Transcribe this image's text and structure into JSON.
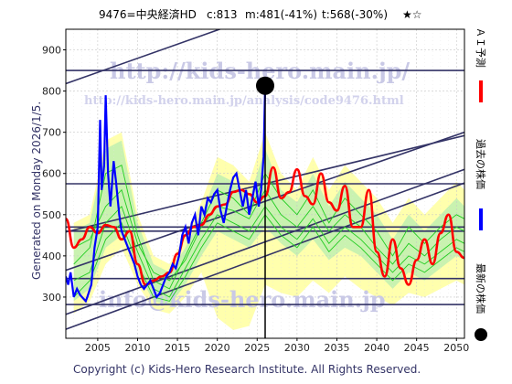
{
  "header": {
    "ticker": "9476=中央経済HD",
    "current": "c:813",
    "mid": "m:481(-41%)",
    "target": "t:568(-30%)",
    "stars": "★☆"
  },
  "side_label": "Generated on Monday 2026/1/5.",
  "footer": "Copyright (c) Kids-Hero Research Institute. All Rights Reserved.",
  "watermarks": {
    "top": "http://kids-hero.main.jp/",
    "mid": "http://kids-hero.main.jp/analysis/code9476.html",
    "bottom": "info@kids-hero.main.jp"
  },
  "legend": [
    {
      "label": "ＡＩ予測",
      "color": "#ff0000"
    },
    {
      "label": "過去の株価",
      "color": "#0000ff"
    },
    {
      "label": "最新の株価",
      "color": "#000000"
    }
  ],
  "colors": {
    "ai_forecast": "#ff0000",
    "past_price": "#0000ff",
    "latest_price": "#000000",
    "green_band": "#22cc22",
    "yellow_band": "#ffff99",
    "channel": "#333366"
  },
  "chart_data": {
    "type": "line",
    "xlim": [
      2001,
      2051
    ],
    "ylim": [
      200,
      950
    ],
    "x_ticks": [
      2005,
      2010,
      2015,
      2020,
      2025,
      2030,
      2035,
      2040,
      2045,
      2050
    ],
    "y_ticks": [
      300,
      400,
      500,
      600,
      700,
      800,
      900
    ],
    "grid": true,
    "latest": {
      "x": 2026.0,
      "y": 813
    },
    "horizontal_levels": [
      282,
      345,
      460,
      470,
      575,
      850
    ],
    "trend_channels": [
      {
        "x": [
          2001,
          2051
        ],
        "y": [
          222,
          577
        ]
      },
      {
        "x": [
          2001,
          2051
        ],
        "y": [
          258,
          610
        ]
      },
      {
        "x": [
          2001,
          2051
        ],
        "y": [
          365,
          700
        ]
      },
      {
        "x": [
          2001,
          2051
        ],
        "y": [
          458,
          692
        ]
      },
      {
        "x": [
          2001,
          2051
        ],
        "y": [
          818,
          1160
        ]
      }
    ],
    "past_price": {
      "x": [
        2001.0,
        2001.3,
        2001.6,
        2002.0,
        2002.4,
        2002.8,
        2003.5,
        2003.7,
        2004.2,
        2004.6,
        2005.0,
        2005.3,
        2005.5,
        2005.8,
        2006.0,
        2006.3,
        2006.6,
        2007.0,
        2007.3,
        2007.7,
        2008.0,
        2008.4,
        2008.8,
        2009.2,
        2009.6,
        2010.0,
        2010.4,
        2010.8,
        2011.2,
        2011.6,
        2012.0,
        2012.4,
        2012.8,
        2013.2,
        2013.6,
        2014.0,
        2014.4,
        2014.8,
        2015.2,
        2015.6,
        2016.0,
        2016.4,
        2016.8,
        2017.2,
        2017.6,
        2018.0,
        2018.4,
        2018.8,
        2019.2,
        2019.6,
        2020.0,
        2020.4,
        2020.8,
        2021.2,
        2021.6,
        2022.0,
        2022.4,
        2022.8,
        2023.2,
        2023.6,
        2024.0,
        2024.4,
        2024.8,
        2025.2,
        2025.5,
        2025.8,
        2026.0
      ],
      "y": [
        350,
        330,
        360,
        300,
        320,
        305,
        290,
        300,
        330,
        420,
        470,
        730,
        560,
        620,
        790,
        600,
        520,
        630,
        580,
        500,
        460,
        440,
        420,
        400,
        380,
        350,
        330,
        320,
        330,
        340,
        320,
        300,
        310,
        330,
        350,
        360,
        380,
        370,
        400,
        450,
        470,
        430,
        480,
        500,
        450,
        520,
        500,
        540,
        530,
        550,
        560,
        510,
        480,
        520,
        560,
        590,
        600,
        560,
        520,
        560,
        500,
        540,
        580,
        520,
        560,
        640,
        813
      ]
    },
    "ai_forecast": {
      "x": [
        2001.0,
        2002.0,
        2003.0,
        2004.0,
        2005.0,
        2006.0,
        2007.0,
        2008.0,
        2009.0,
        2010.0,
        2011.0,
        2012.0,
        2013.0,
        2014.0,
        2015.0,
        2016.0,
        2017.0,
        2018.0,
        2019.0,
        2020.0,
        2021.0,
        2022.0,
        2023.0,
        2024.0,
        2025.0,
        2026.0,
        2027.0,
        2028.0,
        2029.0,
        2030.0,
        2031.0,
        2032.0,
        2033.0,
        2034.0,
        2035.0,
        2036.0,
        2037.0,
        2038.0,
        2039.0,
        2040.0,
        2041.0,
        2042.0,
        2043.0,
        2044.0,
        2045.0,
        2046.0,
        2047.0,
        2048.0,
        2049.0,
        2050.0,
        2051.0
      ],
      "y": [
        490,
        420,
        440,
        470,
        455,
        475,
        470,
        440,
        460,
        380,
        330,
        340,
        350,
        360,
        405,
        450,
        470,
        475,
        500,
        520,
        525,
        555,
        560,
        550,
        530,
        545,
        615,
        540,
        555,
        610,
        545,
        525,
        600,
        530,
        510,
        570,
        470,
        470,
        560,
        410,
        350,
        440,
        370,
        330,
        390,
        440,
        380,
        455,
        500,
        410,
        395
      ]
    },
    "green_lines": [
      {
        "x": [
          2002,
          2004,
          2006,
          2008,
          2010,
          2012,
          2014,
          2016,
          2018,
          2020,
          2022,
          2024,
          2026,
          2028,
          2030,
          2032,
          2034,
          2036,
          2038,
          2040,
          2042,
          2044,
          2046,
          2048,
          2050,
          2051
        ],
        "y": [
          420,
          440,
          520,
          560,
          430,
          360,
          340,
          390,
          470,
          520,
          510,
          490,
          560,
          500,
          470,
          520,
          460,
          500,
          470,
          420,
          380,
          430,
          400,
          440,
          470,
          460
        ]
      },
      {
        "x": [
          2002,
          2004,
          2006,
          2008,
          2010,
          2012,
          2014,
          2016,
          2018,
          2020,
          2022,
          2024,
          2026,
          2028,
          2030,
          2032,
          2034,
          2036,
          2038,
          2040,
          2042,
          2044,
          2046,
          2048,
          2050,
          2051
        ],
        "y": [
          380,
          420,
          600,
          620,
          450,
          340,
          320,
          400,
          480,
          560,
          540,
          500,
          600,
          540,
          500,
          560,
          480,
          540,
          500,
          460,
          400,
          470,
          430,
          470,
          500,
          490
        ]
      },
      {
        "x": [
          2002,
          2004,
          2006,
          2008,
          2010,
          2012,
          2014,
          2016,
          2018,
          2020,
          2022,
          2024,
          2026,
          2028,
          2030,
          2032,
          2034,
          2036,
          2038,
          2040,
          2042,
          2044,
          2046,
          2048,
          2050,
          2051
        ],
        "y": [
          340,
          360,
          480,
          520,
          410,
          320,
          300,
          370,
          440,
          500,
          480,
          460,
          520,
          470,
          440,
          490,
          430,
          470,
          440,
          400,
          360,
          400,
          380,
          410,
          440,
          430
        ]
      },
      {
        "x": [
          2002,
          2004,
          2006,
          2008,
          2010,
          2012,
          2014,
          2016,
          2018,
          2020,
          2022,
          2024,
          2026,
          2028,
          2030,
          2032,
          2034,
          2036,
          2038,
          2040,
          2042,
          2044,
          2046,
          2048,
          2050,
          2051
        ],
        "y": [
          300,
          340,
          440,
          480,
          380,
          300,
          290,
          350,
          420,
          480,
          460,
          440,
          500,
          450,
          420,
          470,
          410,
          450,
          420,
          380,
          340,
          380,
          360,
          390,
          420,
          410
        ]
      }
    ],
    "green_band": {
      "x": [
        2002,
        2004,
        2006,
        2008,
        2010,
        2012,
        2014,
        2016,
        2018,
        2020,
        2022,
        2024,
        2026,
        2028,
        2030,
        2032,
        2034,
        2036,
        2038,
        2040,
        2042,
        2044,
        2046,
        2048,
        2050,
        2051
      ],
      "upper": [
        460,
        480,
        660,
        680,
        480,
        380,
        360,
        420,
        500,
        600,
        580,
        540,
        660,
        560,
        530,
        600,
        520,
        580,
        540,
        500,
        440,
        500,
        460,
        500,
        540,
        520
      ],
      "lower": [
        290,
        320,
        420,
        450,
        360,
        290,
        280,
        330,
        400,
        460,
        440,
        420,
        470,
        430,
        400,
        440,
        390,
        420,
        400,
        360,
        320,
        360,
        340,
        370,
        400,
        390
      ]
    },
    "yellow_band": {
      "x": [
        2002,
        2004,
        2006,
        2008,
        2010,
        2012,
        2014,
        2016,
        2018,
        2020,
        2022,
        2024,
        2026,
        2028,
        2030,
        2032,
        2034,
        2036,
        2038,
        2040,
        2042,
        2044,
        2046,
        2048,
        2050,
        2051
      ],
      "upper": [
        480,
        500,
        680,
        700,
        500,
        400,
        380,
        450,
        530,
        640,
        620,
        580,
        700,
        600,
        560,
        640,
        560,
        620,
        580,
        540,
        480,
        540,
        500,
        540,
        580,
        560
      ],
      "lower": [
        260,
        290,
        380,
        420,
        330,
        270,
        260,
        300,
        360,
        250,
        220,
        230,
        330,
        310,
        300,
        340,
        310,
        350,
        320,
        300,
        280,
        310,
        300,
        320,
        340,
        330
      ]
    }
  }
}
